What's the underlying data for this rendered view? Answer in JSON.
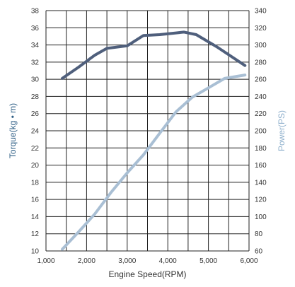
{
  "chart_data": {
    "type": "line",
    "x": [
      1400,
      1800,
      2200,
      2500,
      3000,
      3400,
      3800,
      4200,
      4400,
      4700,
      5200,
      5900
    ],
    "xlabel": "Engine Speed(RPM)",
    "xlim": [
      1000,
      6000
    ],
    "xticks": [
      "1,000",
      "2,000",
      "3,000",
      "4,000",
      "5,000",
      "6,000"
    ],
    "ylabel_left": "Torque(kg • m)",
    "ylim_left": [
      10,
      38
    ],
    "yticks_left": [
      "10",
      "12",
      "14",
      "16",
      "18",
      "20",
      "22",
      "24",
      "26",
      "28",
      "30",
      "32",
      "34",
      "36",
      "38"
    ],
    "ylabel_right": "Power(PS)",
    "ylim_right": [
      60,
      340
    ],
    "yticks_right": [
      "60",
      "80",
      "100",
      "120",
      "140",
      "160",
      "180",
      "200",
      "220",
      "240",
      "260",
      "280",
      "300",
      "320",
      "340"
    ],
    "grid": true,
    "series": [
      {
        "axis": "left",
        "color": "#4f5f7c",
        "x": [
          1400,
          1800,
          2200,
          2500,
          3000,
          3400,
          3800,
          4200,
          4400,
          4700,
          5200,
          5900
        ],
        "values": [
          30.1,
          31.4,
          32.8,
          33.6,
          33.9,
          35.1,
          35.2,
          35.4,
          35.5,
          35.2,
          33.8,
          31.6
        ]
      },
      {
        "axis": "right",
        "color": "#a9bfd4",
        "x": [
          1400,
          1800,
          2200,
          2600,
          3000,
          3400,
          3800,
          4200,
          4600,
          5000,
          5400,
          5900
        ],
        "values": [
          62,
          82,
          103,
          128,
          151,
          172,
          197,
          222,
          239,
          250,
          261,
          265
        ]
      }
    ]
  }
}
